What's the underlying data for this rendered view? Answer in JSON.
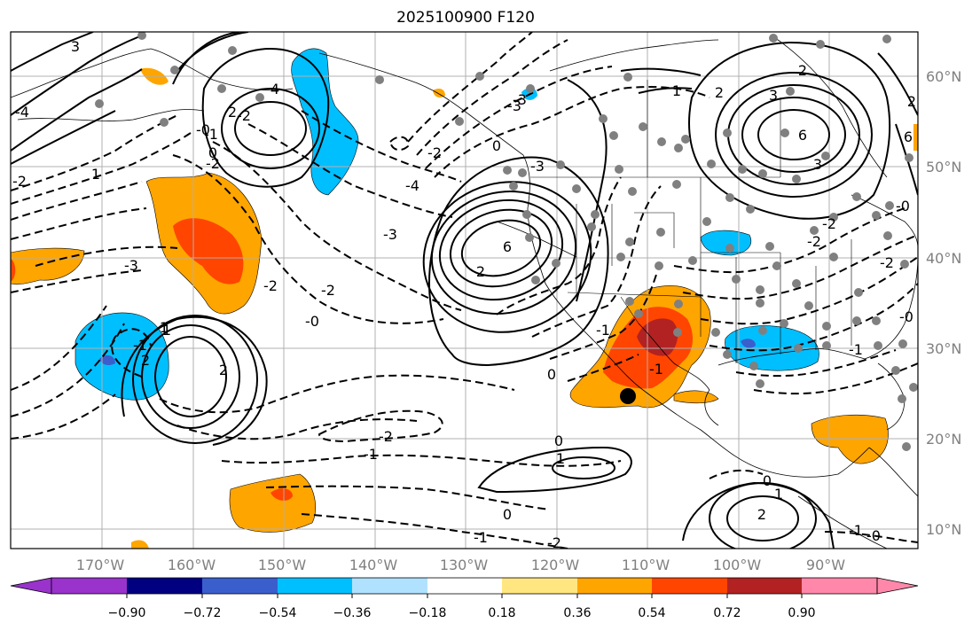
{
  "title": "2025100900 F120",
  "lon_labels": [
    "170°W",
    "160°W",
    "150°W",
    "140°W",
    "130°W",
    "120°W",
    "110°W",
    "100°W",
    "90°W"
  ],
  "lat_labels": [
    "60°N",
    "50°N",
    "40°N",
    "30°N",
    "20°N",
    "10°N"
  ],
  "contour_labels": [
    "3",
    "4",
    "2",
    "1",
    "0",
    "-2",
    "-1",
    "-3",
    "-4",
    "6",
    "2",
    "1",
    "3",
    "-2",
    "-1",
    "-3",
    "-2",
    "-0",
    "0",
    "1",
    "2",
    "-1",
    "-2",
    "2",
    "-2",
    "-1",
    "-0",
    "1",
    "2",
    "0",
    "-1",
    "-2",
    "-0",
    "-1",
    "0",
    "1",
    "2",
    "-0",
    "-4",
    "-3",
    "-2",
    "2",
    "3",
    "0",
    "6",
    "-3",
    "-2",
    "1",
    "6",
    "-2",
    "-1",
    "0",
    "2",
    "-2",
    "-1",
    "-0",
    "-2",
    "-3"
  ],
  "colorbar": {
    "ticks": [
      "−0.90",
      "−0.72",
      "−0.54",
      "−0.36",
      "−0.18",
      "0.18",
      "0.36",
      "0.54",
      "0.72",
      "0.90"
    ],
    "colors": [
      "#9933cc",
      "#000080",
      "#3a5fcd",
      "#00bfff",
      "#b0e2ff",
      "#ffffff",
      "#ffe680",
      "#ffa500",
      "#ff4500",
      "#b22222",
      "#ff88aa"
    ]
  },
  "colors": {
    "warm1": "#ffa500",
    "warm2": "#ff4500",
    "warm3": "#b22222",
    "cool1": "#00bfff",
    "cool2": "#3a5fcd",
    "cool3": "#9933cc"
  }
}
